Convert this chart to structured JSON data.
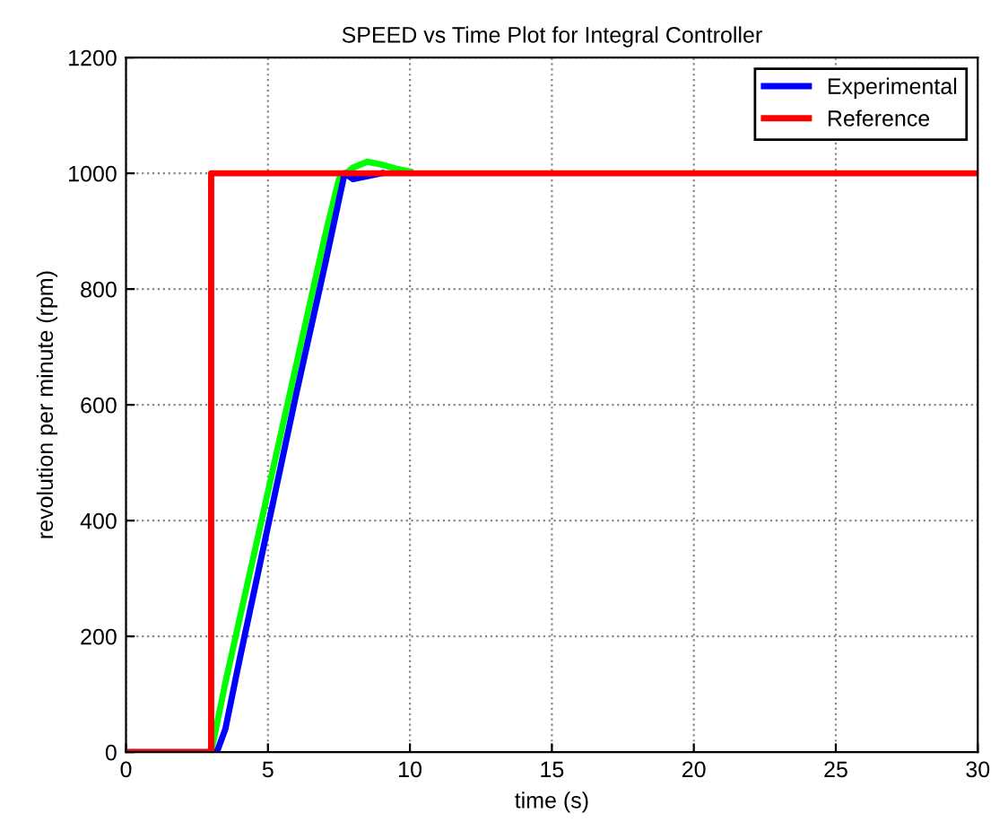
{
  "chart_data": {
    "type": "line",
    "title": "SPEED vs Time Plot for Integral Controller",
    "xlabel": "time (s)",
    "ylabel": "revolution per minute (rpm)",
    "xlim": [
      0,
      30
    ],
    "xticks": [
      0,
      5,
      10,
      15,
      20,
      25,
      30
    ],
    "ylim": [
      0,
      1200
    ],
    "yticks": [
      0,
      200,
      400,
      600,
      800,
      1000,
      1200
    ],
    "grid": true,
    "legend": "top right",
    "series": [
      {
        "color": "#00ff00",
        "x": [
          0,
          3.0,
          3.5,
          4,
          5,
          6,
          7,
          7.5,
          8,
          8.5,
          9,
          9.5,
          10
        ],
        "values": [
          0,
          0,
          120,
          230,
          450,
          670,
          890,
          990,
          1010,
          1020,
          1015,
          1008,
          1003
        ]
      },
      {
        "name": "Experimental",
        "color": "#0000ff",
        "x": [
          0,
          3.2,
          3.5,
          4,
          5,
          6,
          7,
          7.7,
          8,
          8.5,
          9
        ],
        "values": [
          0,
          0,
          40,
          160,
          390,
          620,
          840,
          1000,
          990,
          995,
          1000
        ]
      },
      {
        "name": "Reference",
        "color": "#ff0000",
        "x": [
          0,
          3,
          3,
          30
        ],
        "values": [
          0,
          0,
          1000,
          1000
        ]
      }
    ]
  }
}
